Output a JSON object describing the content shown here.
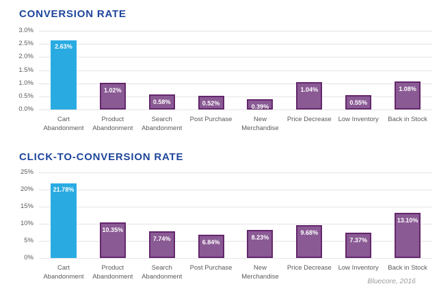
{
  "colors": {
    "highlight_bar": "#29ABE2",
    "bar_fill": "#8A5A94",
    "bar_border": "#63266B",
    "title_text": "#1E459B",
    "axis_text": "#58595B",
    "gridline": "#E4E4E7",
    "value_text": "#FFFFFF",
    "attribution_text": "#9B9B9D"
  },
  "attribution": "Bluecore, 2016",
  "chart_data": [
    {
      "type": "bar",
      "title": "CONVERSION RATE",
      "categories": [
        "Cart Abandonment",
        "Product Abandonment",
        "Search Abandonment",
        "Post Purchase",
        "New Merchandise",
        "Price Decrease",
        "Low Inventory",
        "Back in Stock"
      ],
      "values": [
        2.63,
        1.02,
        0.58,
        0.52,
        0.39,
        1.04,
        0.55,
        1.08
      ],
      "value_labels": [
        "2.63%",
        "1.02%",
        "0.58%",
        "0.52%",
        "0.39%",
        "1.04%",
        "0.55%",
        "1.08%"
      ],
      "xlabel": "",
      "ylabel": "",
      "ylim": [
        0,
        3
      ],
      "yticks": [
        "3.0%",
        "2.5%",
        "2.0%",
        "1.5%",
        "1.0%",
        "0.5%",
        "0.0%"
      ],
      "grid": true,
      "legend": false,
      "highlight_index": 0
    },
    {
      "type": "bar",
      "title": "CLICK-TO-CONVERSION RATE",
      "categories": [
        "Cart Abandonment",
        "Product Abandonment",
        "Search Abandonment",
        "Post Purchase",
        "New Merchandise",
        "Price Decrease",
        "Low Inventory",
        "Back in Stock"
      ],
      "values": [
        21.78,
        10.35,
        7.74,
        6.84,
        8.23,
        9.68,
        7.37,
        13.1
      ],
      "value_labels": [
        "21.78%",
        "10.35%",
        "7.74%",
        "6.84%",
        "8.23%",
        "9.68%",
        "7.37%",
        "13.10%"
      ],
      "xlabel": "",
      "ylabel": "",
      "ylim": [
        0,
        25
      ],
      "yticks": [
        "25%",
        "20%",
        "15%",
        "10%",
        "5%",
        "0%"
      ],
      "grid": true,
      "legend": false,
      "highlight_index": 0
    }
  ]
}
